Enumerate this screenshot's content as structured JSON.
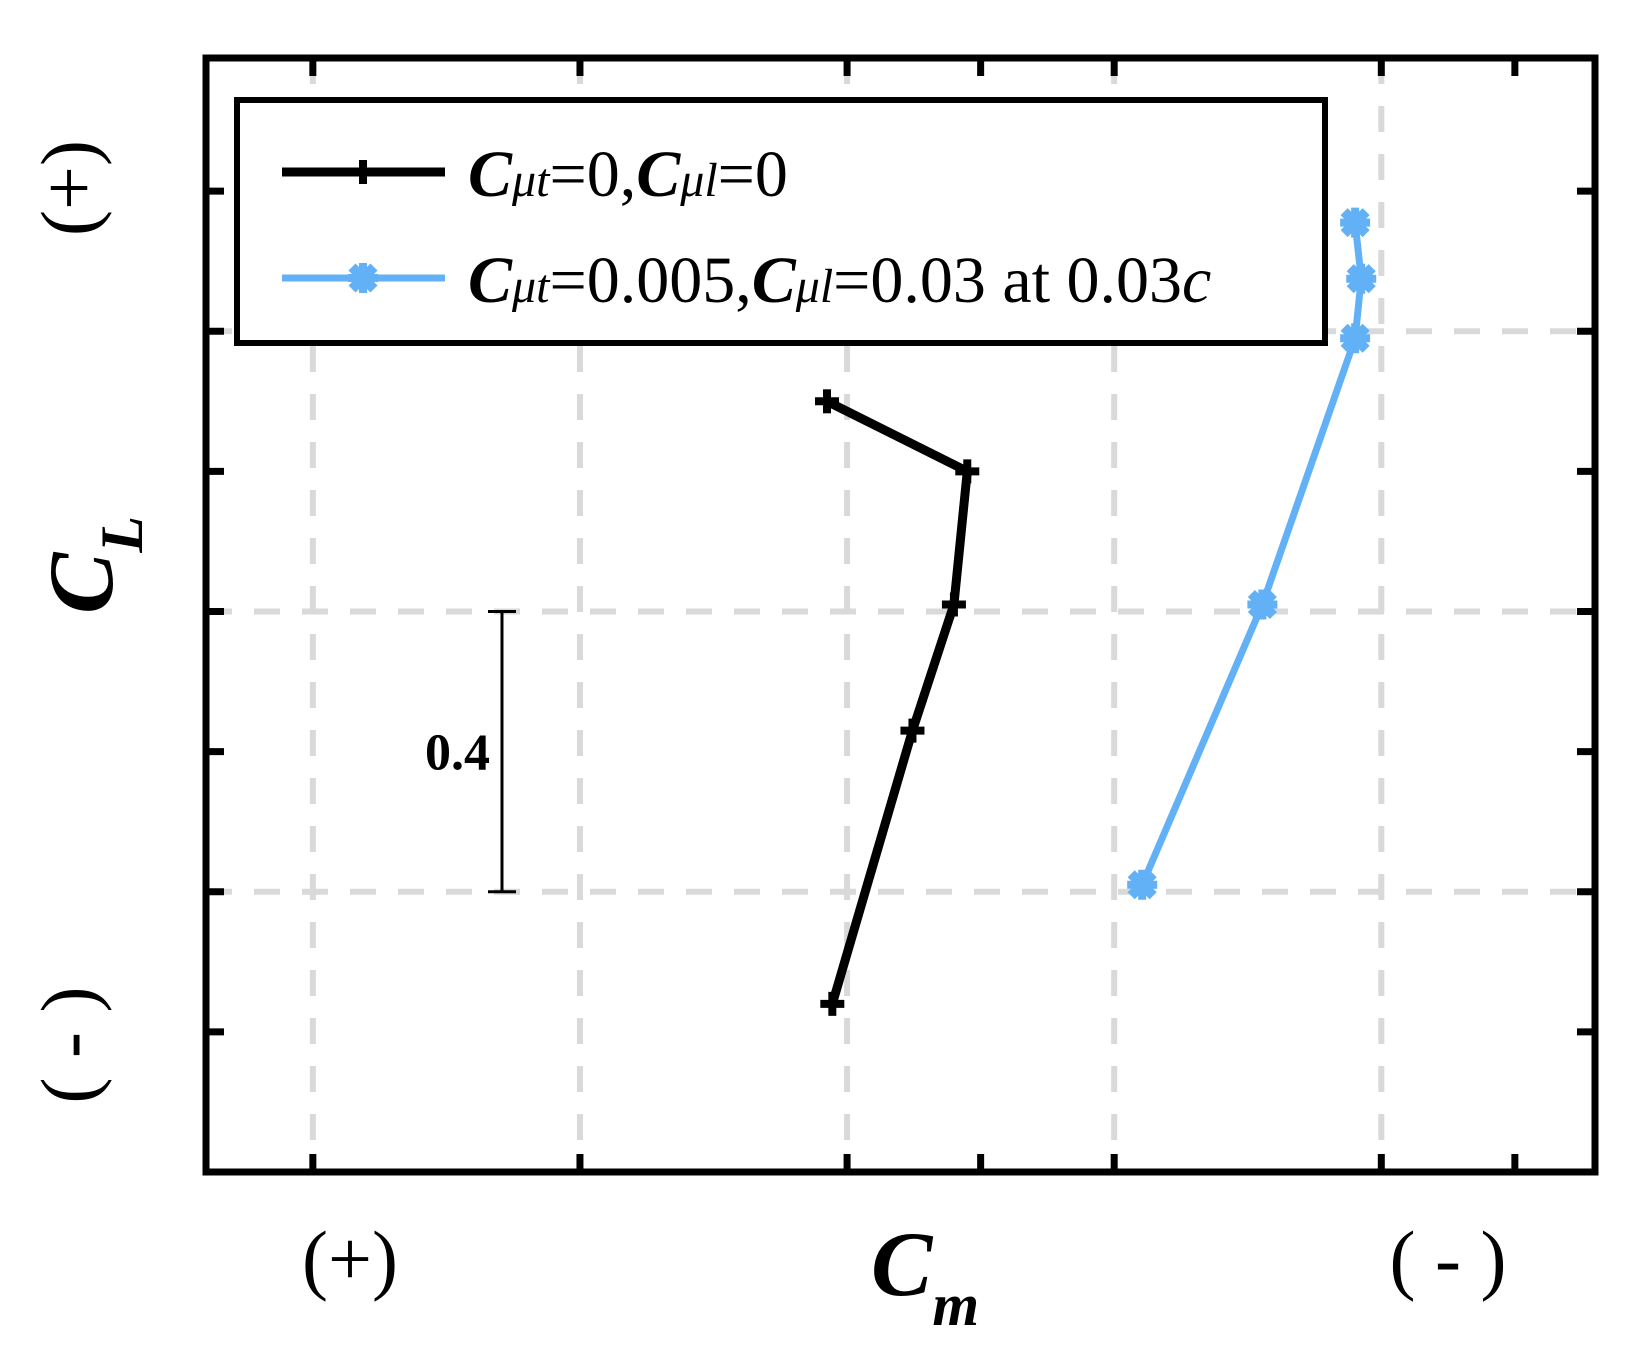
{
  "chart_data": {
    "type": "line",
    "title": "",
    "xlabel": {
      "main": "C",
      "sub": "m"
    },
    "ylabel": {
      "main": "C",
      "sub": "L"
    },
    "x_axis_end_labels": {
      "left": "(+)",
      "right": "( - )"
    },
    "y_axis_end_labels": {
      "top": "(+)",
      "bottom": "( - )"
    },
    "xlim": [
      0,
      1.3
    ],
    "ylim": [
      0,
      1.59
    ],
    "grid": true,
    "legend_position": "top",
    "scale_bar": {
      "label": "0.4",
      "from": 0.4,
      "to": 0.8
    },
    "series": [
      {
        "legend_parts": [
          {
            "t": "C",
            "style": "bi"
          },
          {
            "t": "μt",
            "style": "i"
          },
          {
            "t": "=0,",
            "style": "n"
          },
          {
            "t": "C",
            "style": "bi"
          },
          {
            "t": "μl",
            "style": "i"
          },
          {
            "t": "=0",
            "style": "n"
          }
        ],
        "color": "#000000",
        "marker": "plus",
        "x": [
          0.5812,
          0.7125,
          0.7,
          0.6612,
          0.5862
        ],
        "y": [
          1.1,
          1.0,
          0.81,
          0.63,
          0.24
        ]
      },
      {
        "legend_parts": [
          {
            "t": "C",
            "style": "bi"
          },
          {
            "t": "μt",
            "style": "i"
          },
          {
            "t": "=0.005,",
            "style": "n"
          },
          {
            "t": "C",
            "style": "bi"
          },
          {
            "t": "μl",
            "style": "i"
          },
          {
            "t": "=0.03 at 0.03",
            "style": "n"
          },
          {
            "t": "c",
            "style": "i"
          }
        ],
        "color": "#62b1f6",
        "marker": "asterisk",
        "x": [
          0.8762,
          0.9887,
          1.0755,
          1.0812,
          1.0755
        ],
        "y": [
          0.41,
          0.81,
          1.19,
          1.275,
          1.355
        ]
      }
    ]
  }
}
